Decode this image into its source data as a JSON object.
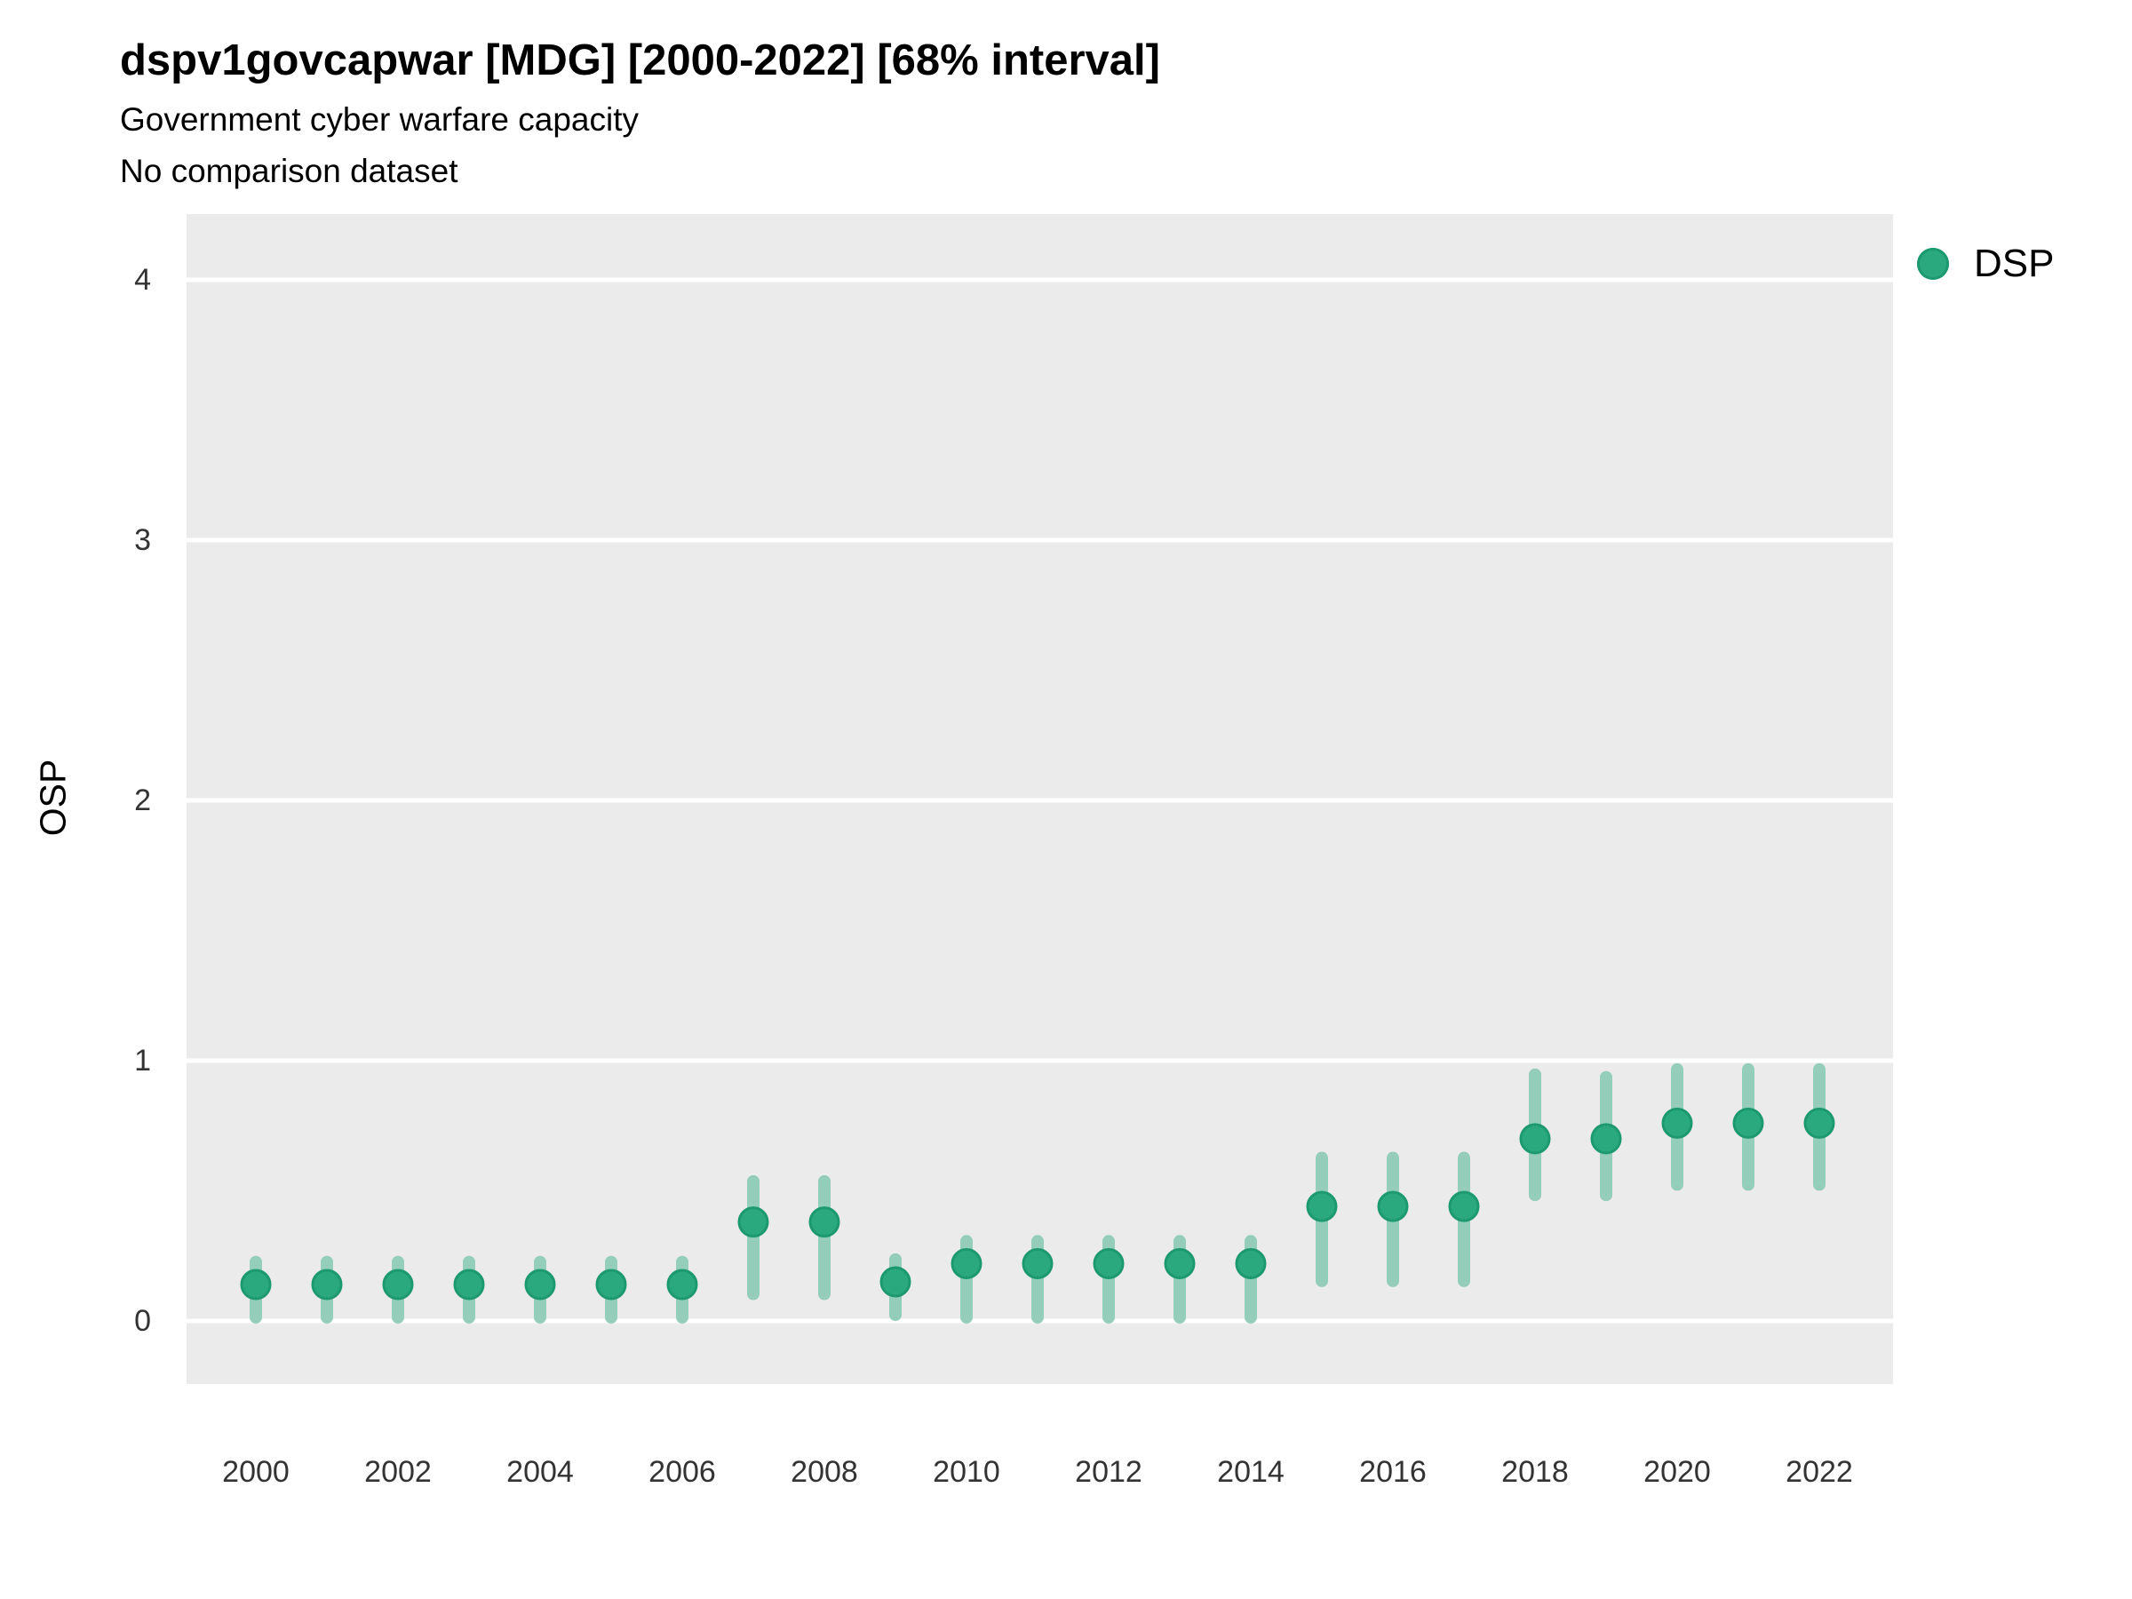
{
  "header": {
    "title": "dspv1govcapwar [MDG] [2000-2022] [68% interval]",
    "subtitle": "Government cyber warfare capacity",
    "note": "No comparison dataset"
  },
  "colors": {
    "point_fill": "#2aa87e",
    "point_stroke": "#1d9970",
    "interval_bar": "#94cdba",
    "panel_background": "#ebebeb",
    "gridline": "#ffffff",
    "tick_text": "#333333",
    "title_text": "#000000"
  },
  "legend": {
    "position": "right",
    "items": [
      {
        "label": "DSP",
        "swatch": "point"
      }
    ]
  },
  "chart_data": {
    "type": "scatter",
    "subtype": "pointrange",
    "title": "dspv1govcapwar [MDG] [2000-2022] [68% interval]",
    "subtitle": "Government cyber warfare capacity",
    "note": "No comparison dataset",
    "interval_label": "68% interval",
    "xlabel": "",
    "ylabel": "OSP",
    "grid": "major horizontal white gridlines on gray panel",
    "legend_position": "right",
    "xlim": [
      1999,
      2023
    ],
    "ylim": [
      -0.25,
      4.25
    ],
    "yticks": [
      0,
      1,
      2,
      3,
      4
    ],
    "xticks": [
      2000,
      2002,
      2004,
      2006,
      2008,
      2010,
      2012,
      2014,
      2016,
      2018,
      2020,
      2022
    ],
    "x": [
      2000,
      2001,
      2002,
      2003,
      2004,
      2005,
      2006,
      2007,
      2008,
      2009,
      2010,
      2011,
      2012,
      2013,
      2014,
      2015,
      2016,
      2017,
      2018,
      2019,
      2020,
      2021,
      2022
    ],
    "series": [
      {
        "name": "DSP",
        "values": [
          0.14,
          0.14,
          0.14,
          0.14,
          0.14,
          0.14,
          0.14,
          0.38,
          0.38,
          0.15,
          0.22,
          0.22,
          0.22,
          0.22,
          0.22,
          0.44,
          0.44,
          0.44,
          0.7,
          0.7,
          0.76,
          0.76,
          0.76
        ],
        "interval_low": [
          -0.01,
          -0.01,
          -0.01,
          -0.01,
          -0.01,
          -0.01,
          -0.01,
          0.08,
          0.08,
          0.0,
          -0.01,
          -0.01,
          -0.01,
          -0.01,
          -0.01,
          0.13,
          0.13,
          0.13,
          0.46,
          0.46,
          0.5,
          0.5,
          0.5
        ],
        "interval_high": [
          0.25,
          0.25,
          0.25,
          0.25,
          0.25,
          0.25,
          0.25,
          0.56,
          0.56,
          0.26,
          0.33,
          0.33,
          0.33,
          0.33,
          0.33,
          0.65,
          0.65,
          0.65,
          0.97,
          0.96,
          0.99,
          0.99,
          0.99
        ]
      }
    ]
  }
}
